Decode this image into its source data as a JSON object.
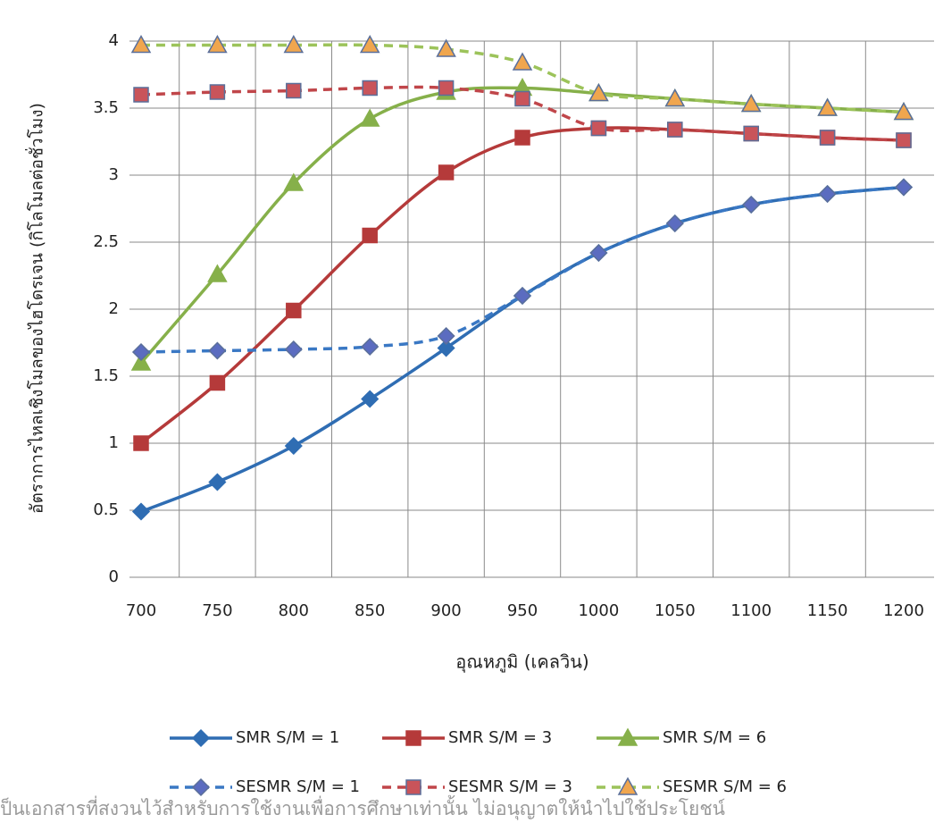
{
  "chart_data": {
    "type": "line",
    "x_label": "อุณหภูมิ (เคลวิน)",
    "y_label": "อัตราการไหลเชิงโมลของไฮโดรเจน (กิโลโมลต่อชั่วโมง)",
    "footer_text": "ป็นเอกสารที่สงวนไว้สำหรับการใช้งานเพื่อการศึกษาเท่านั้น ไม่อนุญาตให้นำไปใช้ประโยชน์",
    "categories": [
      "700",
      "750",
      "800",
      "850",
      "900",
      "950",
      "1000",
      "1050",
      "1100",
      "1150",
      "1200"
    ],
    "ylim": [
      0,
      4
    ],
    "yticks": [
      0,
      0.5,
      1,
      1.5,
      2,
      2.5,
      3,
      3.5,
      4
    ],
    "grid": true,
    "series": [
      {
        "name": "SMR S/M = 1",
        "color": "#2f6db3",
        "marker": "diamond",
        "marker_fill": "#2f6db3",
        "dashed": false,
        "values": [
          0.49,
          0.71,
          0.98,
          1.33,
          1.71,
          2.1,
          2.42,
          2.64,
          2.78,
          2.86,
          2.91
        ]
      },
      {
        "name": "SMR S/M = 3",
        "color": "#b53a3a",
        "marker": "square",
        "marker_fill": "#b53a3a",
        "dashed": false,
        "values": [
          1.0,
          1.45,
          1.99,
          2.55,
          3.02,
          3.28,
          3.35,
          3.34,
          3.31,
          3.28,
          3.26
        ]
      },
      {
        "name": "SMR S/M = 6",
        "color": "#86b04a",
        "marker": "triangle",
        "marker_fill": "#86b04a",
        "dashed": false,
        "values": [
          1.6,
          2.26,
          2.94,
          3.42,
          3.62,
          3.65,
          3.61,
          3.57,
          3.53,
          3.5,
          3.47
        ]
      },
      {
        "name": "SESMR S/M = 1",
        "color": "#3a78c4",
        "marker": "diamond",
        "marker_fill": "#5b6cc0",
        "dashed": true,
        "values": [
          1.68,
          1.69,
          1.7,
          1.72,
          1.8,
          2.1,
          2.42,
          2.64,
          2.78,
          2.86,
          2.91
        ]
      },
      {
        "name": "SESMR S/M = 3",
        "color": "#c0464a",
        "marker": "square",
        "marker_fill": "#c9545a",
        "dashed": true,
        "values": [
          3.6,
          3.62,
          3.63,
          3.65,
          3.65,
          3.57,
          3.35,
          3.34,
          3.31,
          3.28,
          3.26
        ]
      },
      {
        "name": "SESMR S/M = 6",
        "color": "#9cc35a",
        "marker": "triangle",
        "marker_fill": "#f0a64e",
        "dashed": true,
        "values": [
          3.97,
          3.97,
          3.97,
          3.97,
          3.94,
          3.84,
          3.61,
          3.57,
          3.53,
          3.5,
          3.47
        ]
      }
    ]
  }
}
